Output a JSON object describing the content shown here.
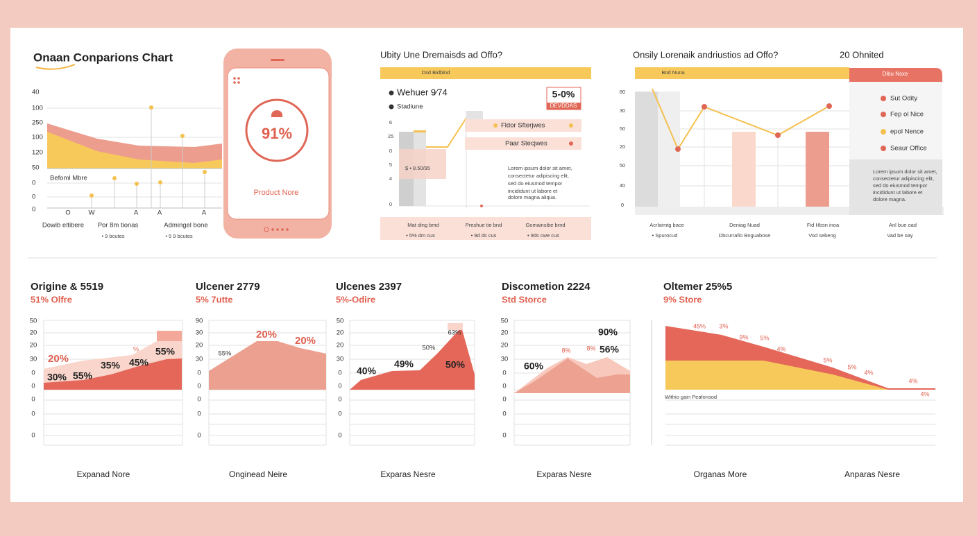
{
  "overview": {
    "title": "Onaan Conparions Chart",
    "y_labels": [
      "40",
      "100",
      "250",
      "100",
      "120",
      "50",
      "0",
      "0",
      "0"
    ],
    "note": "Befoml Mbre",
    "x_labels": [
      "O",
      "W",
      "A",
      "A",
      "A"
    ],
    "footer_labels": [
      "Dowib eltibere",
      "Por 8m tionas",
      "Admingel bone"
    ],
    "footer_notes": [
      "• 9 bcutes",
      "• 5 9 bcutes"
    ]
  },
  "phone": {
    "value": "91%",
    "label": "Product Nore"
  },
  "offer": {
    "title": "Ubity Une Dremaisds ad Offo?",
    "header": "Dsd Bidblnd",
    "legend": [
      "Wehuer 9⁄74",
      "Stadiune"
    ],
    "badge": "5-0%",
    "badge_note": "DEVDDAS",
    "y_labels": [
      "6",
      "25",
      "0",
      "5",
      "4",
      "0"
    ],
    "bar_label": "$ ▪ 8.50/95",
    "callouts": [
      "Fldor Sfterjwes",
      "Paar Stecjwes"
    ],
    "body": [
      "Lorem ipsum dolor sit amet,",
      "consectetur adipiscing elit,",
      "sed do eiusmod tempor",
      "incididunt ut labore et",
      "dolore magna aliqua."
    ],
    "footer_labels": [
      "Mat ding bmd",
      "Preshue tie bnd",
      "Gomainsibe brnd"
    ],
    "footer_notes": [
      "• 5% dm cus",
      "• 9d ds cus",
      "• 9ds cwe cus"
    ]
  },
  "trend": {
    "title": "Onsily Lorenaik andriustios ad Offo?",
    "count": "20 Ohnited",
    "header": "Bod Nuna",
    "y_labels": [
      "80",
      "30",
      "50",
      "20",
      "50",
      "40",
      "0"
    ],
    "card_header": "Dibu Nsxe",
    "legend": [
      "Sut Odity",
      "Fep ol Nice",
      "epol Nence",
      "Seaur Office"
    ],
    "body": [
      "Lorem ipsum dolor sit amet,",
      "consectetur adipiscing elit,",
      "sed do eiusmod tempor",
      "incididunt ut labore et",
      "dolore magna."
    ],
    "footer_labels": [
      "Acrlaimtg bace",
      "Deniag Nuad",
      "Fid Hbsn inoa",
      "Anl bue oad"
    ],
    "footer_notes": [
      "• Spurocud",
      "Dbcurrafio Bnguabose",
      "Vod sebeng",
      "Vad be oay"
    ]
  },
  "bottom": [
    {
      "title": "Origine & 5519",
      "subtitle": "51% Olfre",
      "y_labels": [
        "50",
        "20",
        "20",
        "30",
        "0",
        "0",
        "0",
        "0",
        "0"
      ],
      "data_labels": [
        "20%",
        "30%",
        "55%",
        "35%",
        "45%",
        "55%",
        "%"
      ],
      "caption": "Expanad Nore"
    },
    {
      "title": "Ulcener 2779",
      "subtitle": "5% 7utte",
      "y_labels": [
        "90",
        "30",
        "20",
        "30",
        "0",
        "0",
        "0",
        "0",
        "0"
      ],
      "data_labels": [
        "20%",
        "20%",
        "55%"
      ],
      "caption": "Onginead Neire"
    },
    {
      "title": "Ulcenes 2397",
      "subtitle": "5%-Odire",
      "y_labels": [
        "50",
        "20",
        "20",
        "30",
        "0",
        "0",
        "0",
        "0",
        "0"
      ],
      "data_labels": [
        "40%",
        "49%",
        "50%",
        "63%",
        "50%"
      ],
      "caption": "Exparas Nesre"
    },
    {
      "title": "Discometion 2224",
      "subtitle": "Std Storce",
      "y_labels": [
        "50",
        "20",
        "20",
        "30",
        "0",
        "0",
        "0",
        "0",
        "0"
      ],
      "data_labels": [
        "90%",
        "56%",
        "60%",
        "8%",
        "8%"
      ],
      "caption": "Exparas Nesre"
    },
    {
      "title": "Oltemer 25%5",
      "subtitle": "9% Store",
      "data_labels": [
        "45%",
        "3%",
        "9%",
        "5%",
        "4%",
        "5%",
        "5%",
        "4%",
        "4%",
        "4%"
      ],
      "note": "Withio gain Peafonsod",
      "caption": "Organas More"
    },
    {
      "caption": "Anparas Nesre"
    }
  ]
}
